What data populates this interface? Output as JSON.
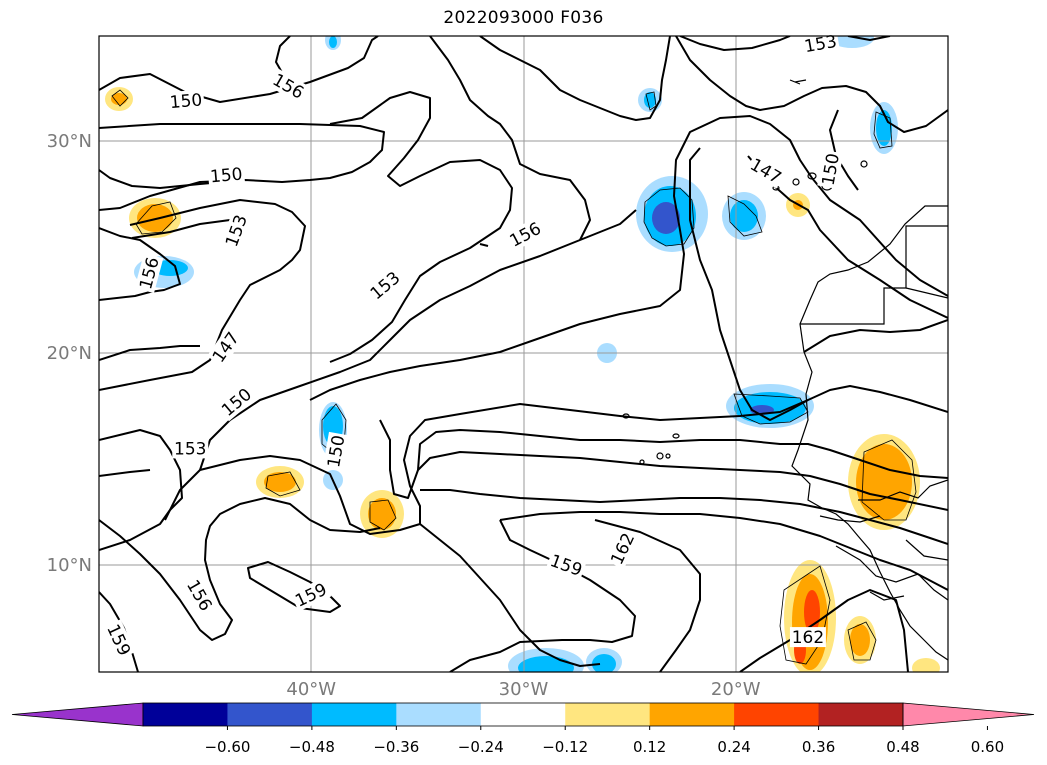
{
  "title": "2022093000 F036",
  "map": {
    "lat_labels": [
      {
        "text": "30°N",
        "lat": 30
      },
      {
        "text": "20°N",
        "lat": 20
      },
      {
        "text": "10°N",
        "lat": 10
      }
    ],
    "lon_labels": [
      {
        "text": "40°W",
        "lon": -40
      },
      {
        "text": "30°W",
        "lon": -30
      },
      {
        "text": "20°W",
        "lon": -20
      }
    ],
    "extent": {
      "lon_min": -50,
      "lon_max": -10,
      "lat_min": 5,
      "lat_max": 35
    },
    "gridlines": true,
    "contour_color": "#000000",
    "contour_labels": [
      {
        "text": "150",
        "lon": -45.9,
        "lat": 31.9,
        "rot": -5
      },
      {
        "text": "156",
        "lon": -41.1,
        "lat": 32.6,
        "rot": 30
      },
      {
        "text": "153",
        "lon": -16.0,
        "lat": 34.6,
        "rot": -10
      },
      {
        "text": "150",
        "lon": -44.0,
        "lat": 28.4,
        "rot": -5
      },
      {
        "text": "147",
        "lon": -18.6,
        "lat": 28.6,
        "rot": 30
      },
      {
        "text": "150",
        "lon": -15.5,
        "lat": 28.7,
        "rot": -80
      },
      {
        "text": "153",
        "lon": -43.5,
        "lat": 25.8,
        "rot": -70
      },
      {
        "text": "156",
        "lon": -29.9,
        "lat": 25.6,
        "rot": -28
      },
      {
        "text": "156",
        "lon": -47.6,
        "lat": 23.8,
        "rot": -75
      },
      {
        "text": "153",
        "lon": -36.5,
        "lat": 23.2,
        "rot": -40
      },
      {
        "text": "147",
        "lon": -44.0,
        "lat": 20.3,
        "rot": -55
      },
      {
        "text": "150",
        "lon": -43.5,
        "lat": 17.7,
        "rot": -40
      },
      {
        "text": "150",
        "lon": -38.8,
        "lat": 15.4,
        "rot": -80
      },
      {
        "text": "153",
        "lon": -45.7,
        "lat": 15.5,
        "rot": 0
      },
      {
        "text": "162",
        "lon": -25.3,
        "lat": 10.8,
        "rot": -65
      },
      {
        "text": "159",
        "lon": -28.0,
        "lat": 10.0,
        "rot": 20
      },
      {
        "text": "156",
        "lon": -45.3,
        "lat": 8.6,
        "rot": 60
      },
      {
        "text": "159",
        "lon": -40.0,
        "lat": 8.6,
        "rot": -25
      },
      {
        "text": "159",
        "lon": -49.1,
        "lat": 6.5,
        "rot": 65
      },
      {
        "text": "162",
        "lon": -16.6,
        "lat": 6.6,
        "rot": 0
      }
    ]
  },
  "colorbar": {
    "ticks": [
      "−0.60",
      "−0.48",
      "−0.36",
      "−0.24",
      "−0.12",
      "0.12",
      "0.24",
      "0.36",
      "0.48",
      "0.60"
    ],
    "colors": [
      "#9933cc",
      "#000099",
      "#3355cc",
      "#00bbff",
      "#aaddff",
      "#ffffff",
      "#ffe680",
      "#ffa500",
      "#ff4400",
      "#b22222",
      "#ff88aa"
    ],
    "extend": "both"
  },
  "field_colors": {
    "neg_light": "#aaddff",
    "neg_mid": "#00bbff",
    "neg_dark": "#3355cc",
    "pos_light": "#ffe680",
    "pos_mid": "#ffa500",
    "pos_dark": "#ff4400"
  }
}
